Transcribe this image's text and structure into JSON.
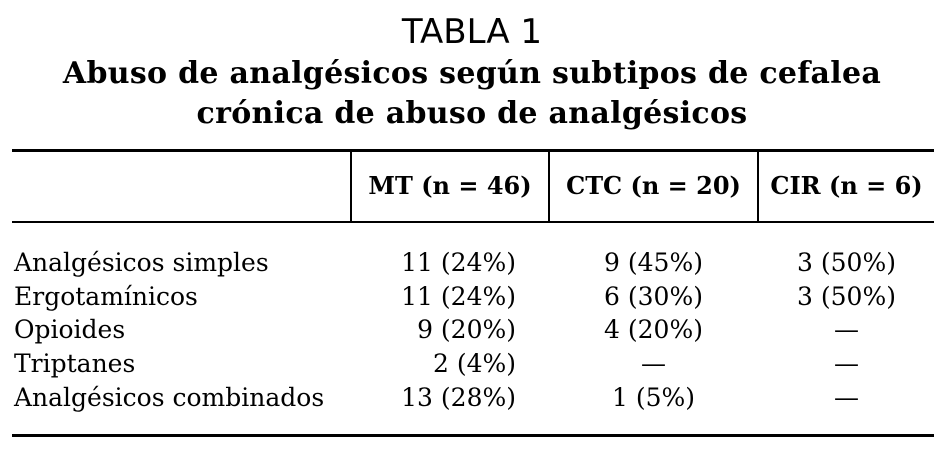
{
  "table": {
    "number_label": "TABLA 1",
    "title_line1": "Abuso de analgésicos según subtipos de cefalea",
    "title_line2": "crónica de abuso de analgésicos",
    "columns": [
      "",
      "MT (n = 46)",
      "CTC (n = 20)",
      "CIR (n = 6)"
    ],
    "rows": [
      {
        "label": "Analgésicos simples",
        "mt": "11 (24%)",
        "ctc": "9 (45%)",
        "cir": "3 (50%)"
      },
      {
        "label": "Ergotamínicos",
        "mt": "11 (24%)",
        "ctc": "6 (30%)",
        "cir": "3 (50%)"
      },
      {
        "label": "Opioides",
        "mt": "9 (20%)",
        "ctc": "4 (20%)",
        "cir": "—"
      },
      {
        "label": "Triptanes",
        "mt": "2 (4%)",
        "ctc": "—",
        "cir": "—"
      },
      {
        "label": "Analgésicos combinados",
        "mt": "13 (28%)",
        "ctc": "1 (5%)",
        "cir": "—"
      }
    ]
  }
}
